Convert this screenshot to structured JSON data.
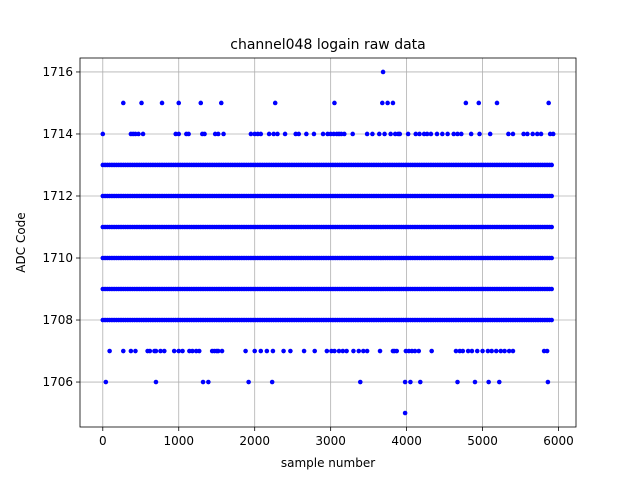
{
  "chart_data": {
    "type": "scatter",
    "title": "channel048 logain raw data",
    "xlabel": "sample number",
    "ylabel": "ADC Code",
    "xlim": [
      -300,
      6230
    ],
    "ylim": [
      1704.55,
      1716.45
    ],
    "xticks": [
      0,
      1000,
      2000,
      3000,
      4000,
      5000,
      6000
    ],
    "yticks": [
      1706,
      1708,
      1710,
      1712,
      1714,
      1716
    ],
    "grid": true,
    "marker_color": "#0000ff",
    "series": [
      {
        "dense_levels": [
          1708,
          1709,
          1710,
          1711,
          1712,
          1713
        ],
        "x_range": [
          0,
          5930
        ],
        "sparse_points": [
          {
            "y": 1716,
            "x": [
              3690
            ]
          },
          {
            "y": 1715,
            "x": [
              270,
              510,
              780,
              1000,
              1290,
              1560,
              2270,
              3050,
              3680,
              3750,
              3820,
              4780,
              4950,
              5190,
              5870
            ]
          },
          {
            "y": 1714,
            "x": [
              0,
              370,
              400,
              430,
              470,
              530,
              960,
              1000,
              1100,
              1130,
              1310,
              1340,
              1480,
              1520,
              1590,
              1950,
              2000,
              2040,
              2080,
              2190,
              2250,
              2300,
              2400,
              2540,
              2580,
              2680,
              2780,
              2900,
              2960,
              3000,
              3040,
              3080,
              3110,
              3140,
              3180,
              3290,
              3480,
              3550,
              3640,
              3710,
              3790,
              3850,
              3890,
              3910,
              4020,
              4120,
              4170,
              4230,
              4270,
              4320,
              4400,
              4470,
              4540,
              4620,
              4670,
              4720,
              4850,
              4960,
              5100,
              5340,
              5400,
              5540,
              5590,
              5660,
              5720,
              5770,
              5890,
              5930
            ]
          },
          {
            "y": 1707,
            "x": [
              90,
              270,
              370,
              430,
              590,
              620,
              680,
              700,
              760,
              810,
              940,
              1000,
              1050,
              1140,
              1180,
              1230,
              1270,
              1440,
              1470,
              1500,
              1520,
              1570,
              1880,
              2000,
              2080,
              2160,
              2240,
              2380,
              2470,
              2650,
              2790,
              2950,
              3010,
              3050,
              3110,
              3160,
              3210,
              3300,
              3370,
              3430,
              3480,
              3650,
              3820,
              3840,
              3870,
              3990,
              4030,
              4070,
              4110,
              4160,
              4330,
              4650,
              4700,
              4740,
              4810,
              4860,
              4930,
              5000,
              5070,
              5120,
              5180,
              5240,
              5290,
              5350,
              5400,
              5810,
              5850
            ]
          },
          {
            "y": 1706,
            "x": [
              40,
              700,
              1320,
              1390,
              1920,
              2230,
              3390,
              3980,
              4050,
              4180,
              4670,
              4900,
              5080,
              5220,
              5860
            ]
          },
          {
            "y": 1705,
            "x": [
              3980
            ]
          }
        ]
      }
    ]
  }
}
